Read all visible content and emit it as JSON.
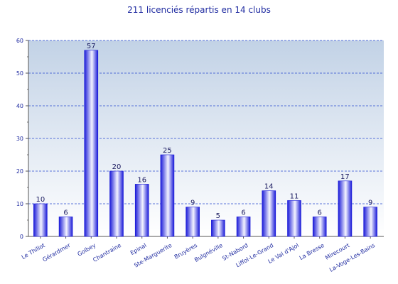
{
  "chart_data": {
    "type": "bar",
    "title": "211 licenciés répartis en 14 clubs",
    "categories": [
      "Le Thillot",
      "Gérardmer",
      "Golbey",
      "Chantraine",
      "Epinal",
      "Ste-Marguerite",
      "Bruyères",
      "Bulgnéville",
      "St-Nabord",
      "Liffol-Le-Grand",
      "Le Val d'Ajol",
      "La Bresse",
      "Mirecourt",
      "La-Voge-Les-Bains"
    ],
    "values": [
      10,
      6,
      57,
      20,
      16,
      25,
      9,
      5,
      6,
      14,
      11,
      6,
      17,
      9
    ],
    "ylim": [
      0,
      60
    ],
    "yticks": [
      0,
      10,
      20,
      30,
      40,
      50,
      60
    ],
    "grid": true,
    "xlabel": "",
    "ylabel": "",
    "colors": {
      "bar_dark": "#1a1ad8",
      "bar_light": "#f4f4ff",
      "grid": "#2a4ad0",
      "text": "#1e2aa0",
      "plot_top": "#c2d2e6",
      "plot_bottom": "#ffffff"
    }
  }
}
